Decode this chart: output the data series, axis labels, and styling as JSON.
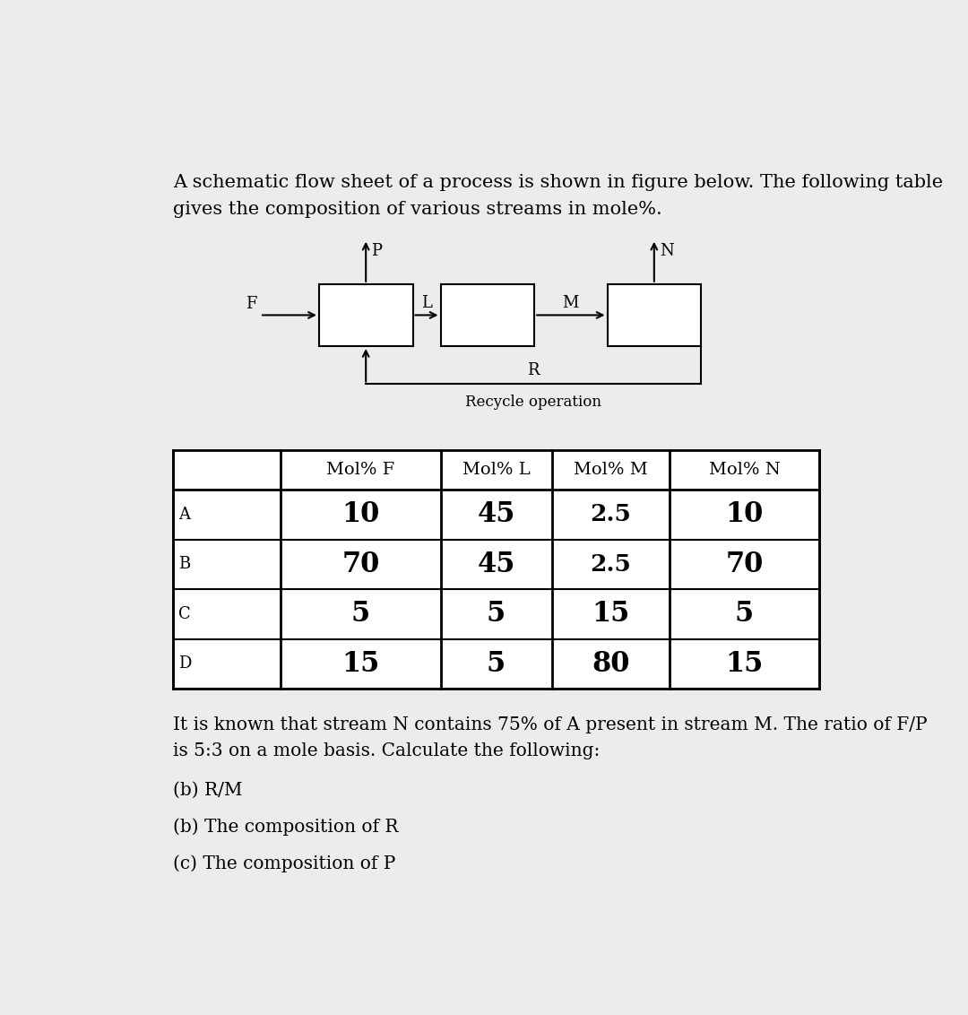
{
  "bg_color": "#ececec",
  "white": "#ffffff",
  "intro_text_line1": "A schematic flow sheet of a process is shown in figure below. The following table",
  "intro_text_line2": "gives the composition of various streams in mole%.",
  "recycle_label": "Recycle operation",
  "table_headers": [
    "",
    "Mol% F",
    "Mol% L",
    "Mol% M",
    "Mol% N"
  ],
  "table_rows": [
    [
      "A",
      "10",
      "45",
      "2.5",
      "10"
    ],
    [
      "B",
      "70",
      "45",
      "2.5",
      "70"
    ],
    [
      "C",
      "5",
      "5",
      "15",
      "5"
    ],
    [
      "D",
      "15",
      "5",
      "80",
      "15"
    ]
  ],
  "info_text_line1": "It is known that stream N contains 75% of A present in stream M. The ratio of F/P",
  "info_text_line2": "is 5:3 on a mole basis. Calculate the following:",
  "question_a": "(b) R/M",
  "question_b": "(b) The composition of R",
  "question_c": "(c) The composition of P"
}
